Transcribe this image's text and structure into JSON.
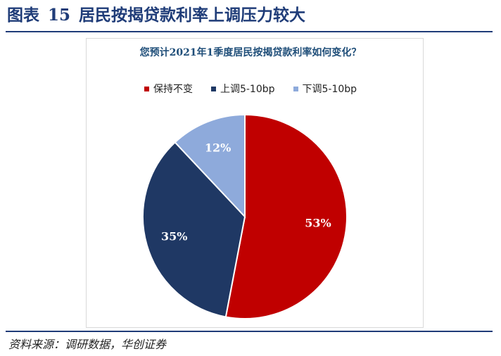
{
  "figure": {
    "label": "图表",
    "number": "15",
    "title": "居民按揭贷款利率上调压力较大"
  },
  "chart_data": {
    "type": "pie",
    "title": "您预计2021年1季度居民按揭贷款利率如何变化？",
    "categories": [
      "保持不变",
      "上调5-10bp",
      "下调5-10bp"
    ],
    "values": [
      53,
      35,
      12
    ],
    "labels": [
      "53%",
      "35%",
      "12%"
    ],
    "colors": [
      "#c00000",
      "#1f3864",
      "#8eaadb"
    ],
    "legend_position": "top"
  },
  "source": "资料来源：调研数据，华创证券"
}
